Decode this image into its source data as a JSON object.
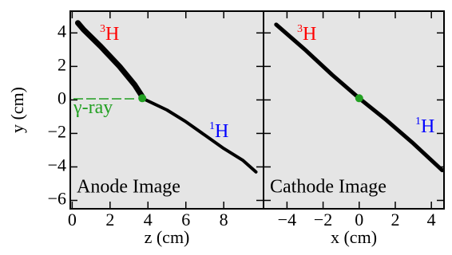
{
  "chart_data": [
    {
      "type": "line",
      "xlabel": "z (cm)",
      "ylabel": "y (cm)",
      "panel_label": "Anode Image",
      "xlim": [
        -0.1,
        10.1
      ],
      "ylim": [
        -6.5,
        5.3
      ],
      "xticks": [
        0,
        2,
        4,
        6,
        8
      ],
      "yticks": [
        {
          "value": -6,
          "label": "−6"
        },
        {
          "value": -4,
          "label": "−4"
        },
        {
          "value": -2,
          "label": "−2"
        },
        0,
        2,
        4
      ],
      "background": "#e5e5e5",
      "series": [
        {
          "type": "line",
          "color": "#000000",
          "width": 7,
          "x": [
            0.3,
            0.6,
            1.5,
            2.5,
            3.3,
            3.7
          ],
          "values": [
            4.6,
            4.2,
            3.2,
            2.0,
            0.9,
            0.2
          ]
        },
        {
          "type": "line",
          "color": "#000000",
          "width": 4,
          "x": [
            3.7,
            5.0,
            6.0,
            7.0,
            8.0,
            9.0,
            9.7
          ],
          "values": [
            0.1,
            -0.6,
            -1.3,
            -2.1,
            -2.9,
            -3.6,
            -4.3
          ]
        },
        {
          "type": "scatter",
          "color": "#22a022",
          "x": [
            3.7
          ],
          "values": [
            0.1
          ]
        }
      ],
      "annotations": [
        {
          "text": "H",
          "superscript": "3",
          "color": "#ff0000"
        },
        {
          "text": "H",
          "superscript": "1",
          "color": "#0000ff"
        },
        {
          "text": "γ-ray",
          "color": "#22a022"
        }
      ]
    },
    {
      "type": "line",
      "xlabel": "x (cm)",
      "panel_label": "Cathode Image",
      "xlim": [
        -5.3,
        4.7
      ],
      "ylim": [
        -6.5,
        5.3
      ],
      "xticks": [
        {
          "value": -4,
          "label": "−4"
        },
        {
          "value": -2,
          "label": "−2"
        },
        0,
        2,
        4
      ],
      "yticks": [
        -6,
        -4,
        -2,
        0,
        2,
        4
      ],
      "background": "#e5e5e5",
      "series": [
        {
          "type": "line",
          "color": "#000000",
          "width": 5,
          "x": [
            -4.6,
            -3.0,
            -1.5,
            0.0,
            1.5,
            3.0,
            4.6
          ],
          "values": [
            4.5,
            3.0,
            1.5,
            0.1,
            -1.2,
            -2.6,
            -4.2
          ]
        },
        {
          "type": "scatter",
          "color": "#22a022",
          "x": [
            0.0
          ],
          "values": [
            0.1
          ]
        }
      ],
      "annotations": [
        {
          "text": "H",
          "superscript": "3",
          "color": "#ff0000"
        },
        {
          "text": "H",
          "superscript": "1",
          "color": "#0000ff"
        }
      ]
    }
  ]
}
